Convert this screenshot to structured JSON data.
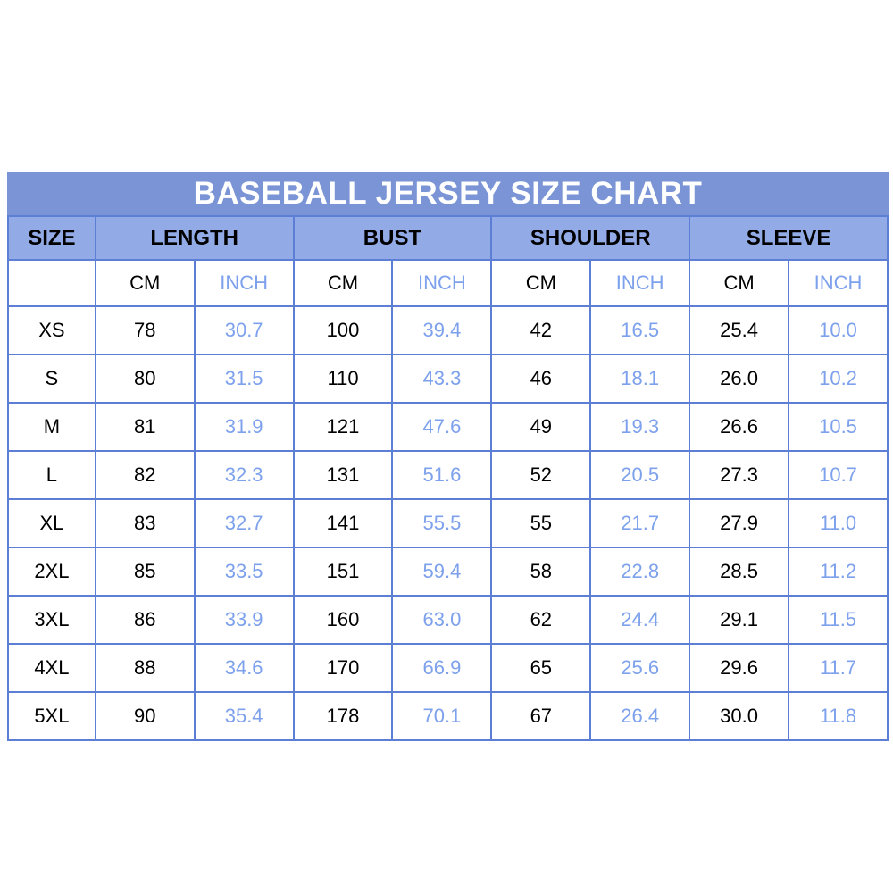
{
  "chart_data": {
    "type": "table",
    "title": "BASEBALL JERSEY SIZE CHART",
    "column_groups": [
      "SIZE",
      "LENGTH",
      "BUST",
      "SHOULDER",
      "SLEEVE"
    ],
    "unit_row": [
      "",
      "CM",
      "INCH",
      "CM",
      "INCH",
      "CM",
      "INCH",
      "CM",
      "INCH"
    ],
    "columns": [
      "SIZE",
      "LENGTH CM",
      "LENGTH INCH",
      "BUST CM",
      "BUST INCH",
      "SHOULDER CM",
      "SHOULDER INCH",
      "SLEEVE CM",
      "SLEEVE INCH"
    ],
    "rows": [
      [
        "XS",
        "78",
        "30.7",
        "100",
        "39.4",
        "42",
        "16.5",
        "25.4",
        "10.0"
      ],
      [
        "S",
        "80",
        "31.5",
        "110",
        "43.3",
        "46",
        "18.1",
        "26.0",
        "10.2"
      ],
      [
        "M",
        "81",
        "31.9",
        "121",
        "47.6",
        "49",
        "19.3",
        "26.6",
        "10.5"
      ],
      [
        "L",
        "82",
        "32.3",
        "131",
        "51.6",
        "52",
        "20.5",
        "27.3",
        "10.7"
      ],
      [
        "XL",
        "83",
        "32.7",
        "141",
        "55.5",
        "55",
        "21.7",
        "27.9",
        "11.0"
      ],
      [
        "2XL",
        "85",
        "33.5",
        "151",
        "59.4",
        "58",
        "22.8",
        "28.5",
        "11.2"
      ],
      [
        "3XL",
        "86",
        "33.9",
        "160",
        "63.0",
        "62",
        "24.4",
        "29.1",
        "11.5"
      ],
      [
        "4XL",
        "88",
        "34.6",
        "170",
        "66.9",
        "65",
        "25.6",
        "29.6",
        "11.7"
      ],
      [
        "5XL",
        "90",
        "35.4",
        "178",
        "70.1",
        "67",
        "26.4",
        "30.0",
        "11.8"
      ]
    ],
    "layout_hints": {
      "size_labels_column_first": true,
      "units_alternate": "cm values black, inch values light blue"
    }
  },
  "colors": {
    "title_bg": "#7a94d6",
    "title_text": "#ffffff",
    "header_bg": "#92abe6",
    "header_text": "#000000",
    "border": "#5c7ed4",
    "cm_text": "#000000",
    "inch_text": "#7da1ec",
    "row_bg": "#ffffff",
    "page_bg": "#ffffff"
  }
}
